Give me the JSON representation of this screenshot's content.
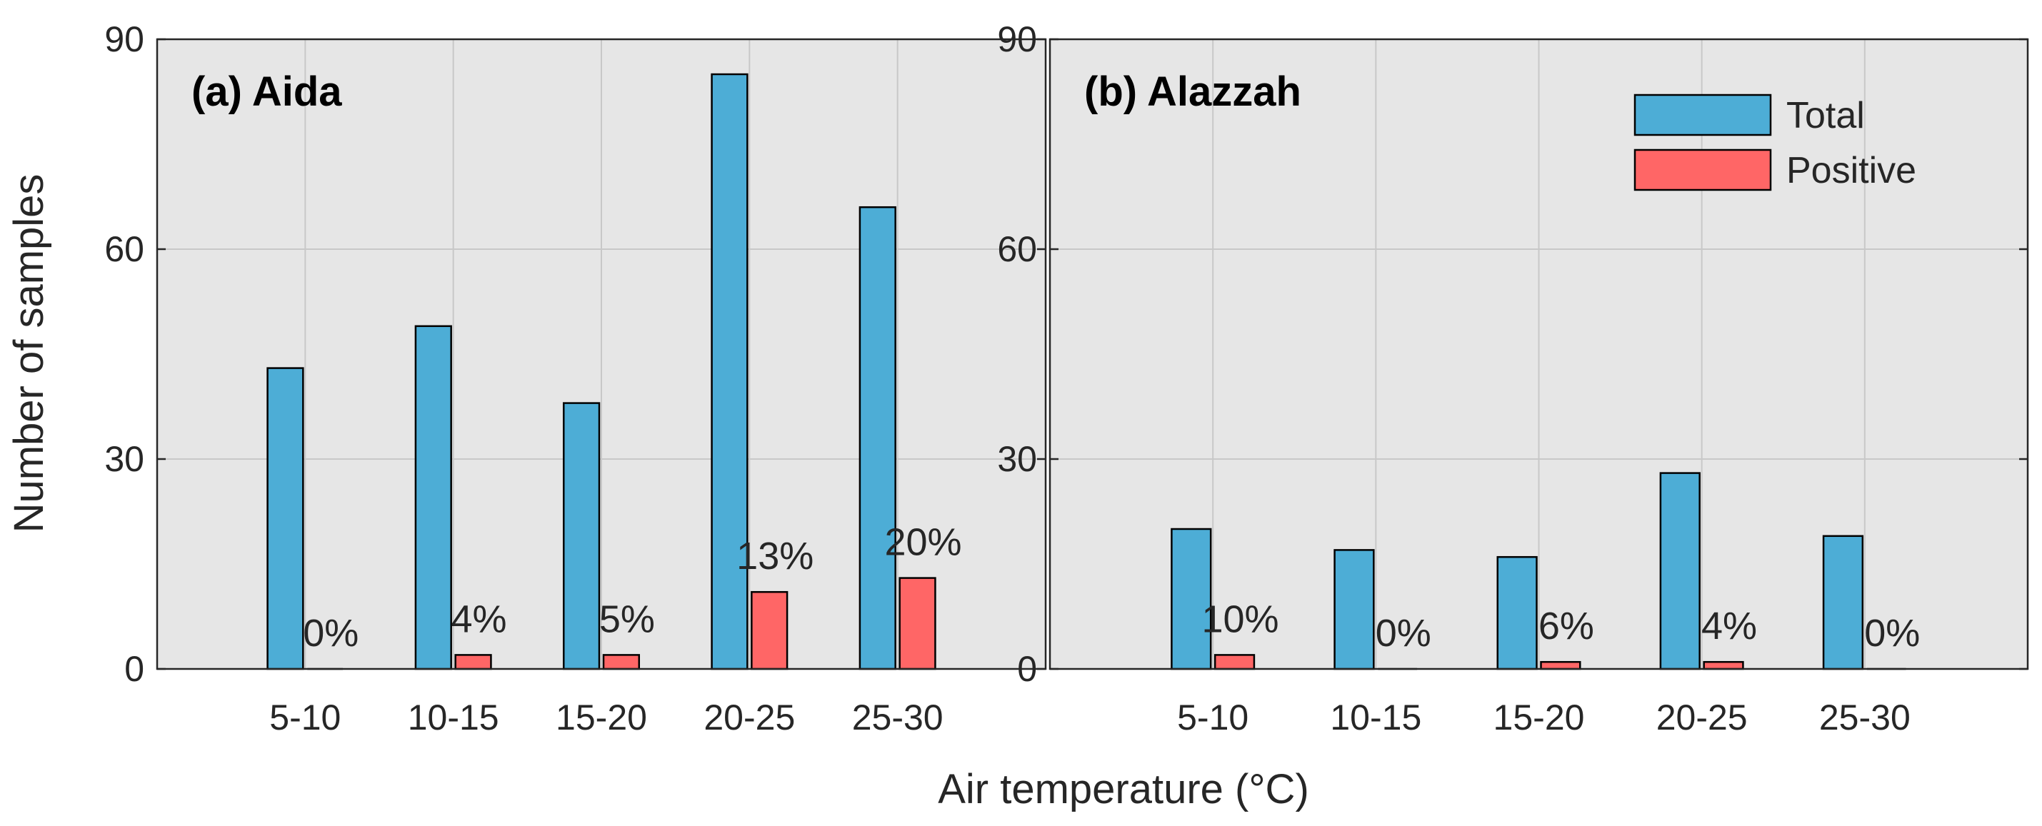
{
  "chart_data": {
    "type": "bar",
    "xlabel": "Air temperature (°C)",
    "ylabel": "Number of samples",
    "categories": [
      "5-10",
      "10-15",
      "15-20",
      "20-25",
      "25-30"
    ],
    "ylim": [
      0,
      90
    ],
    "yticks": [
      "0",
      "30",
      "60",
      "90"
    ],
    "grid": true,
    "legend": {
      "location": "top-right",
      "entries": [
        "Total",
        "Positive"
      ]
    },
    "colors": {
      "total": "#4DADD6",
      "positive": "#FF6666",
      "axes_bg": "#E6E6E6",
      "grid": "#C8C8C8"
    },
    "panels": [
      {
        "title": "(a) Aida",
        "series": [
          {
            "name": "Total",
            "values": [
              43,
              49,
              38,
              85,
              66
            ]
          },
          {
            "name": "Positive",
            "values": [
              0,
              2,
              2,
              11,
              13
            ]
          }
        ],
        "labels": [
          "0%",
          "4%",
          "5%",
          "13%",
          "20%"
        ]
      },
      {
        "title": "(b) Alazzah",
        "series": [
          {
            "name": "Total",
            "values": [
              20,
              17,
              16,
              28,
              19
            ]
          },
          {
            "name": "Positive",
            "values": [
              2,
              0,
              1,
              1,
              0
            ]
          }
        ],
        "labels": [
          "10%",
          "0%",
          "6%",
          "4%",
          "0%"
        ]
      }
    ]
  }
}
